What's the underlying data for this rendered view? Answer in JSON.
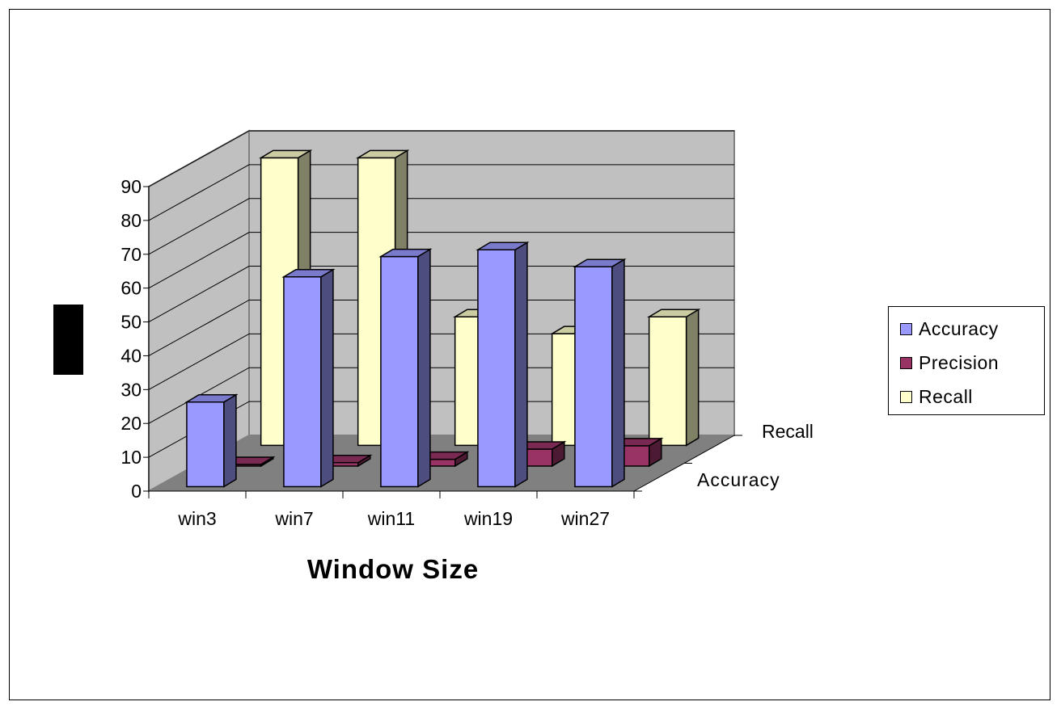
{
  "chart_data": {
    "type": "bar",
    "style": "3d-clustered",
    "title": "",
    "xlabel": "Window Size",
    "ylabel": "",
    "ylim": [
      0,
      90
    ],
    "ytick_step": 10,
    "categories": [
      "win3",
      "win7",
      "win11",
      "win19",
      "win27"
    ],
    "depth_labels": [
      "Recall",
      "Accuracy"
    ],
    "series": [
      {
        "name": "Accuracy",
        "color": "#9999ff",
        "values": [
          25,
          62,
          68,
          70,
          65
        ]
      },
      {
        "name": "Precision",
        "color": "#993366",
        "values": [
          0,
          1,
          2,
          5,
          6
        ]
      },
      {
        "name": "Recall",
        "color": "#ffffcc",
        "values": [
          85,
          85,
          38,
          33,
          38
        ]
      }
    ],
    "legend_position": "right",
    "grid": true
  }
}
